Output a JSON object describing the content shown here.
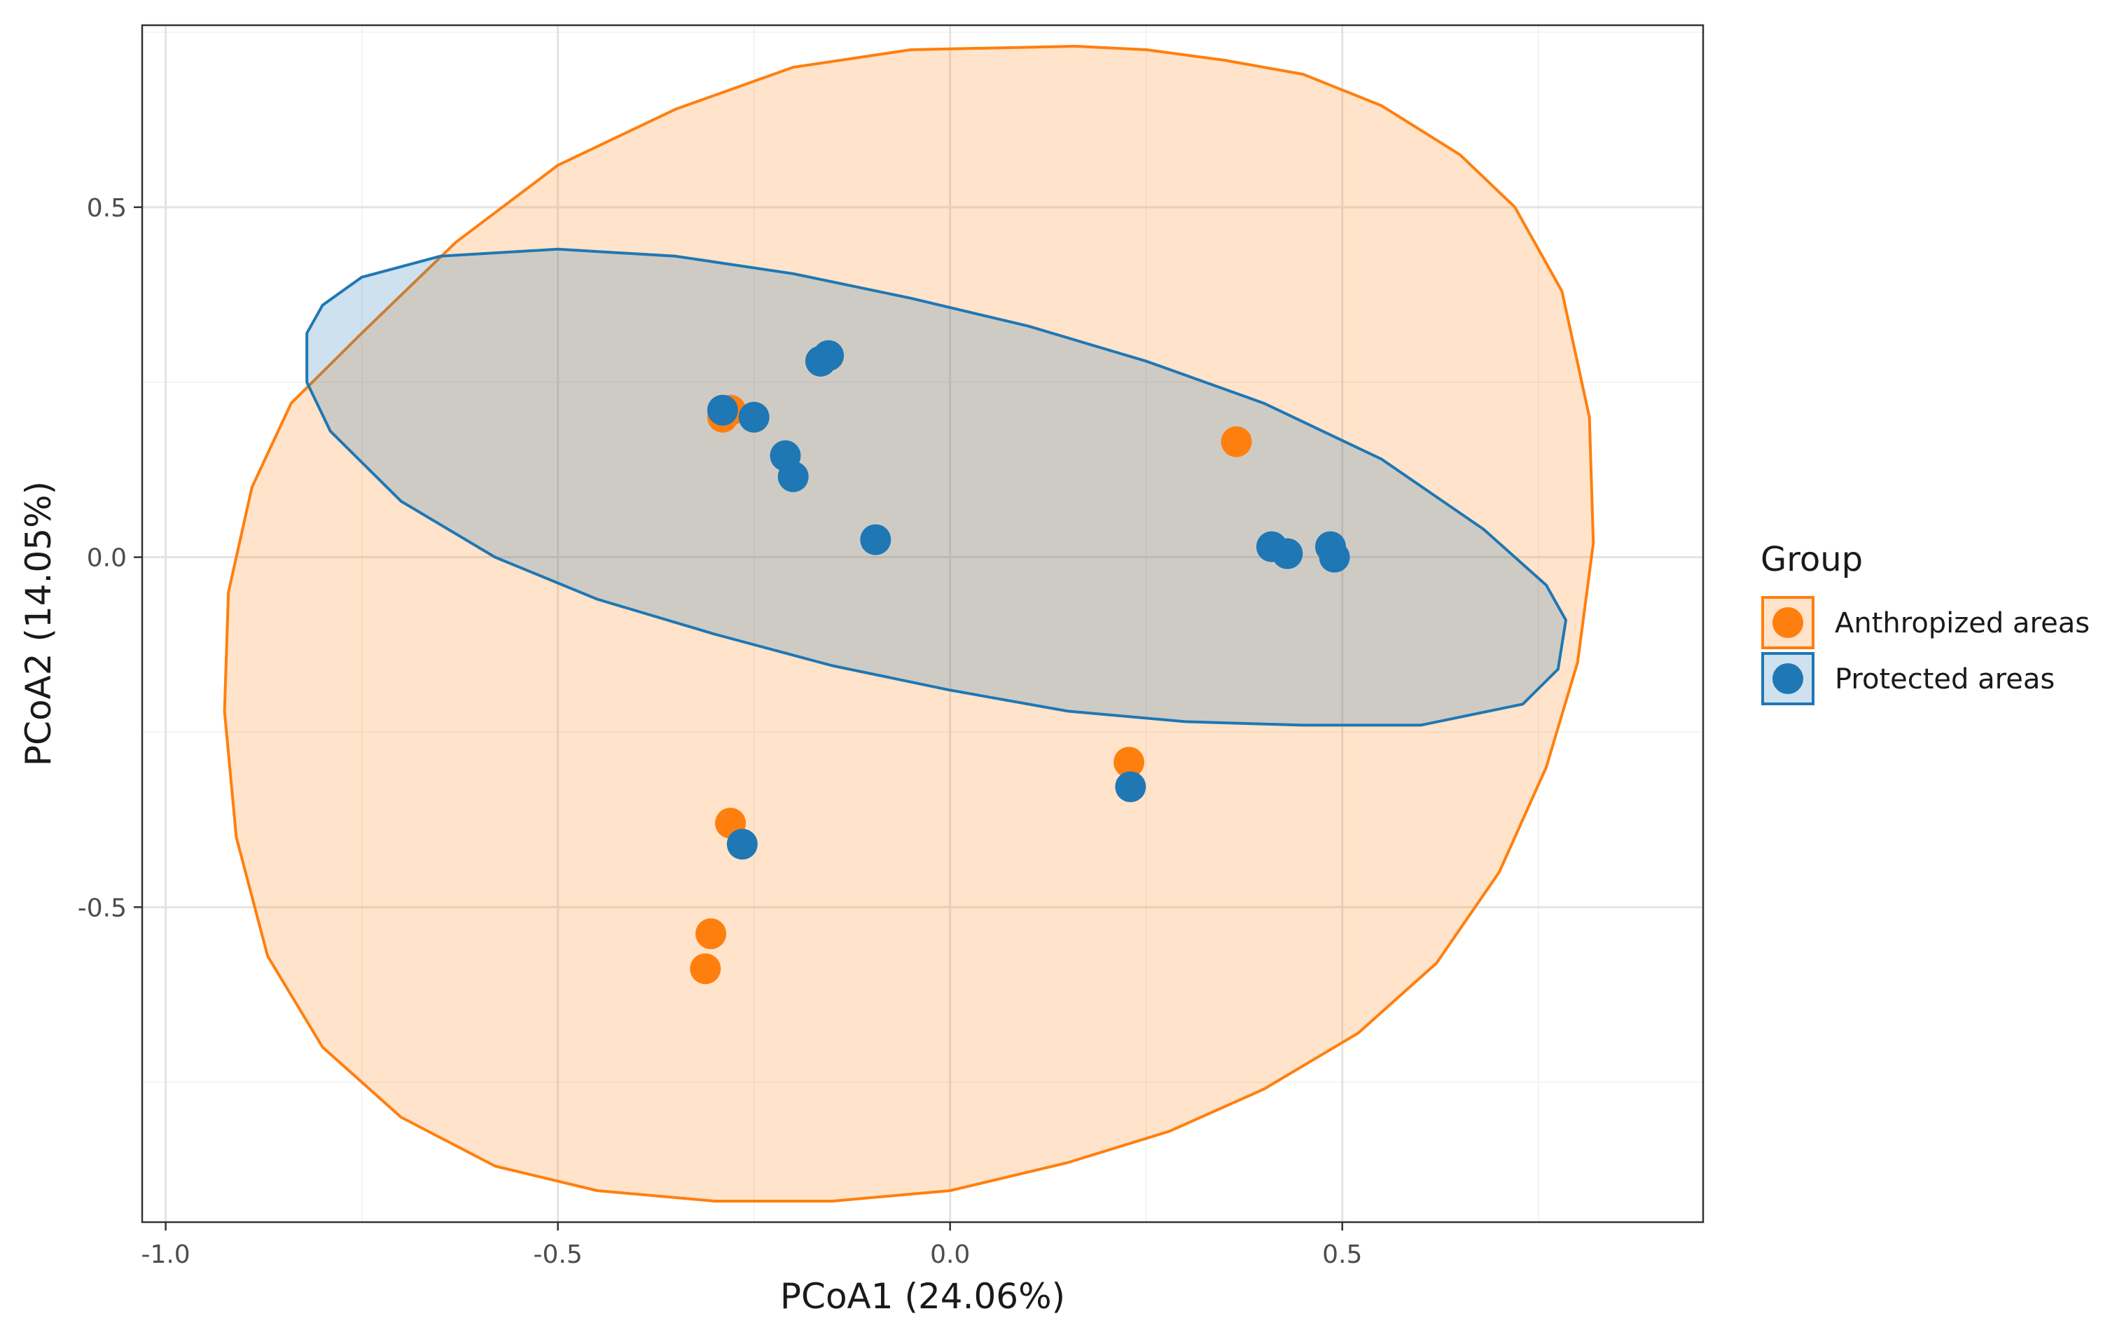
{
  "chart_data": {
    "type": "scatter",
    "title": "",
    "xlabel": "PCoA1 (24.06%)",
    "ylabel": "PCoA2 (14.05%)",
    "xlim": [
      -1.03,
      0.96
    ],
    "ylim": [
      -0.95,
      0.76
    ],
    "x_ticks": [
      -1.0,
      -0.5,
      0.0,
      0.5
    ],
    "x_tick_labels": [
      "-1.0",
      "-0.5",
      "0.0",
      "0.5"
    ],
    "y_ticks": [
      -0.5,
      0.0,
      0.5
    ],
    "y_tick_labels": [
      "-0.5",
      "0.0",
      "0.5"
    ],
    "grid": true,
    "legend": {
      "title": "Group",
      "position": "right"
    },
    "series": [
      {
        "name": "Anthropized areas",
        "color": "#ff7f0e",
        "points": [
          {
            "x": -0.29,
            "y": 0.2
          },
          {
            "x": -0.28,
            "y": 0.21
          },
          {
            "x": 0.365,
            "y": 0.165
          },
          {
            "x": 0.228,
            "y": -0.293
          },
          {
            "x": -0.28,
            "y": -0.38
          },
          {
            "x": -0.305,
            "y": -0.538
          },
          {
            "x": -0.312,
            "y": -0.588
          }
        ],
        "ellipse": [
          [
            0.16,
            0.73
          ],
          [
            0.25,
            0.725
          ],
          [
            0.35,
            0.71
          ],
          [
            0.45,
            0.69
          ],
          [
            0.55,
            0.645
          ],
          [
            0.65,
            0.575
          ],
          [
            0.72,
            0.5
          ],
          [
            0.78,
            0.38
          ],
          [
            0.815,
            0.2
          ],
          [
            0.82,
            0.02
          ],
          [
            0.8,
            -0.15
          ],
          [
            0.76,
            -0.3
          ],
          [
            0.7,
            -0.45
          ],
          [
            0.62,
            -0.58
          ],
          [
            0.52,
            -0.68
          ],
          [
            0.4,
            -0.76
          ],
          [
            0.28,
            -0.82
          ],
          [
            0.15,
            -0.865
          ],
          [
            0.0,
            -0.905
          ],
          [
            -0.15,
            -0.92
          ],
          [
            -0.3,
            -0.92
          ],
          [
            -0.45,
            -0.905
          ],
          [
            -0.58,
            -0.87
          ],
          [
            -0.7,
            -0.8
          ],
          [
            -0.8,
            -0.7
          ],
          [
            -0.87,
            -0.57
          ],
          [
            -0.91,
            -0.4
          ],
          [
            -0.925,
            -0.22
          ],
          [
            -0.92,
            -0.05
          ],
          [
            -0.89,
            0.1
          ],
          [
            -0.84,
            0.22
          ],
          [
            -0.75,
            0.32
          ],
          [
            -0.63,
            0.45
          ],
          [
            -0.5,
            0.56
          ],
          [
            -0.35,
            0.64
          ],
          [
            -0.2,
            0.7
          ],
          [
            -0.05,
            0.725
          ],
          [
            0.16,
            0.73
          ]
        ]
      },
      {
        "name": "Protected areas",
        "color": "#1f77b4",
        "points": [
          {
            "x": -0.29,
            "y": 0.21
          },
          {
            "x": -0.25,
            "y": 0.2
          },
          {
            "x": -0.21,
            "y": 0.145
          },
          {
            "x": -0.2,
            "y": 0.115
          },
          {
            "x": -0.165,
            "y": 0.28
          },
          {
            "x": -0.155,
            "y": 0.288
          },
          {
            "x": -0.095,
            "y": 0.025
          },
          {
            "x": 0.23,
            "y": -0.328
          },
          {
            "x": -0.265,
            "y": -0.41
          },
          {
            "x": 0.41,
            "y": 0.015
          },
          {
            "x": 0.43,
            "y": 0.005
          },
          {
            "x": 0.485,
            "y": 0.015
          },
          {
            "x": 0.49,
            "y": 0.0
          }
        ],
        "ellipse": [
          [
            -0.5,
            0.44
          ],
          [
            -0.35,
            0.43
          ],
          [
            -0.2,
            0.405
          ],
          [
            -0.05,
            0.37
          ],
          [
            0.1,
            0.33
          ],
          [
            0.25,
            0.28
          ],
          [
            0.4,
            0.22
          ],
          [
            0.55,
            0.14
          ],
          [
            0.68,
            0.04
          ],
          [
            0.76,
            -0.04
          ],
          [
            0.785,
            -0.09
          ],
          [
            0.775,
            -0.16
          ],
          [
            0.73,
            -0.21
          ],
          [
            0.6,
            -0.24
          ],
          [
            0.45,
            -0.24
          ],
          [
            0.3,
            -0.235
          ],
          [
            0.15,
            -0.22
          ],
          [
            0.0,
            -0.19
          ],
          [
            -0.15,
            -0.155
          ],
          [
            -0.3,
            -0.11
          ],
          [
            -0.45,
            -0.06
          ],
          [
            -0.58,
            0.0
          ],
          [
            -0.7,
            0.08
          ],
          [
            -0.79,
            0.18
          ],
          [
            -0.82,
            0.25
          ],
          [
            -0.82,
            0.32
          ],
          [
            -0.8,
            0.36
          ],
          [
            -0.75,
            0.4
          ],
          [
            -0.65,
            0.43
          ],
          [
            -0.5,
            0.44
          ]
        ]
      }
    ]
  }
}
